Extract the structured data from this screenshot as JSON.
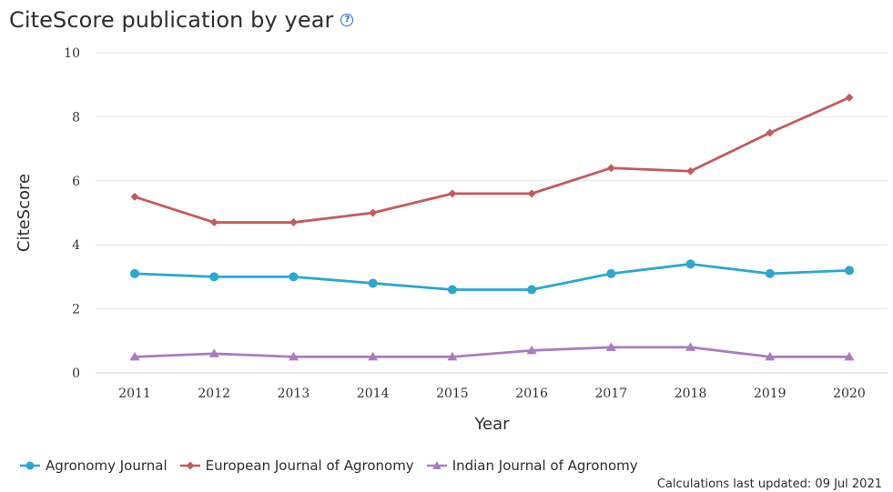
{
  "header": {
    "title": "CiteScore publication by year",
    "help_glyph": "?"
  },
  "footer": {
    "updated": "Calculations last updated: 09 Jul 2021"
  },
  "chart_data": {
    "type": "line",
    "xlabel": "Year",
    "ylabel": "CiteScore",
    "ylim": [
      0,
      10
    ],
    "yticks": [
      0,
      2,
      4,
      6,
      8,
      10
    ],
    "categories": [
      "2011",
      "2012",
      "2013",
      "2014",
      "2015",
      "2016",
      "2017",
      "2018",
      "2019",
      "2020"
    ],
    "grid": "horizontal",
    "legend_position": "bottom-left",
    "series": [
      {
        "name": "Agronomy Journal",
        "color": "#2aa7d3",
        "marker": "circle",
        "values": [
          3.1,
          3.0,
          3.0,
          2.8,
          2.6,
          2.6,
          3.1,
          3.4,
          3.1,
          3.2
        ]
      },
      {
        "name": "European Journal of Agronomy",
        "color": "#c55a5e",
        "marker": "diamond",
        "values": [
          5.5,
          4.7,
          4.7,
          5.0,
          5.6,
          5.6,
          6.4,
          6.3,
          7.5,
          8.6
        ]
      },
      {
        "name": "Indian Journal of Agronomy",
        "color": "#a97bc3",
        "marker": "triangle",
        "values": [
          0.5,
          0.6,
          0.5,
          0.5,
          0.5,
          0.7,
          0.8,
          0.8,
          0.5,
          0.5
        ]
      }
    ]
  }
}
